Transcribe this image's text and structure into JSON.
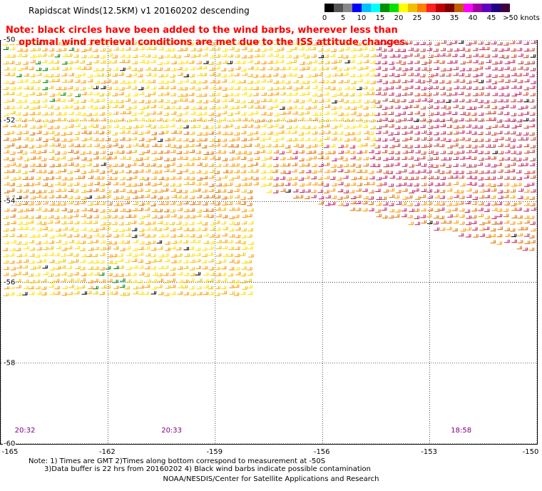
{
  "title": "Rapidscat Winds(12.5KM) v1 20160202 descending",
  "note_line1": "Note: black circles have been added to the wind barbs, wherever less than",
  "note_line2": "optimal wind retrieval conditions are met due to the ISS attitude changes.",
  "scale": {
    "colors": [
      "#000000",
      "#555555",
      "#888888",
      "#0000ff",
      "#00c0ff",
      "#00ffff",
      "#009000",
      "#00e000",
      "#ffff00",
      "#f0c000",
      "#ff8000",
      "#ff2020",
      "#c00000",
      "#800000",
      "#c06000",
      "#ff00ff",
      "#a000a0",
      "#6000c0",
      "#200080",
      "#400040"
    ],
    "labels": [
      "0",
      "5",
      "10",
      "15",
      "20",
      "25",
      "30",
      "35",
      "40",
      "45",
      ">50 knots"
    ]
  },
  "y_ticks": [
    "-50",
    "-52",
    "-54",
    "-56",
    "-58",
    "-60"
  ],
  "x_ticks": [
    "-165",
    "-162",
    "-159",
    "-156",
    "-153",
    "-150"
  ],
  "time_labels": [
    "20:32",
    "20:33",
    "18:58"
  ],
  "footnote1": "Note: 1) Times are GMT 2)Times along bottom correspond to measurement at -50S",
  "footnote2": "3)Data buffer is 22 hrs from 20160202 4) Black wind barbs indicate possible contamination",
  "credit": "NOAA/NESDIS/Center for Satellite Applications and Research",
  "map_data": {
    "lon_range": [
      -165,
      -150
    ],
    "lat_range": [
      -60,
      -50
    ],
    "barb_palette": [
      "#ffe000",
      "#f0c000",
      "#ff9900",
      "#e07000",
      "#d04020",
      "#c02060",
      "#b04040",
      "#008000",
      "#000000"
    ]
  }
}
